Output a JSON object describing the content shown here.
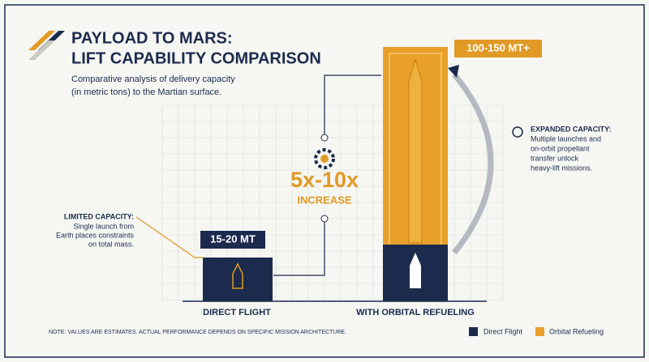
{
  "header": {
    "title": [
      "PAYLOAD TO MARS:",
      "LIFT CAPABILITY COMPARISON"
    ],
    "subtitle": [
      "Comparative analysis of delivery capacity",
      "(in metric tons) to the Martian surface."
    ]
  },
  "left_note": {
    "heading": "LIMITED CAPACITY:",
    "lines": [
      "Single launch from",
      "Earth places constraints",
      "on total mass."
    ]
  },
  "right_note": {
    "heading": "EXPANDED CAPACITY:",
    "lines": [
      "Multiple launches and",
      "on-orbit propellant",
      "transfer unlock",
      "heavy-lift missions."
    ]
  },
  "center": {
    "multiplier": "5x-10x",
    "label": "INCREASE"
  },
  "bars": [
    {
      "label": "15-20 MT",
      "name": "DIRECT FLIGHT"
    },
    {
      "label": "100-150 MT+",
      "name": "WITH ORBITAL REFUELING"
    }
  ],
  "footnote": "NOTE: VALUES ARE ESTIMATES. ACTUAL PERFORMANCE DEPENDS ON SPECIFIC MISSION ARCHITECTURE.",
  "legend": [
    "Direct Flight",
    "Orbital Refueling"
  ]
}
